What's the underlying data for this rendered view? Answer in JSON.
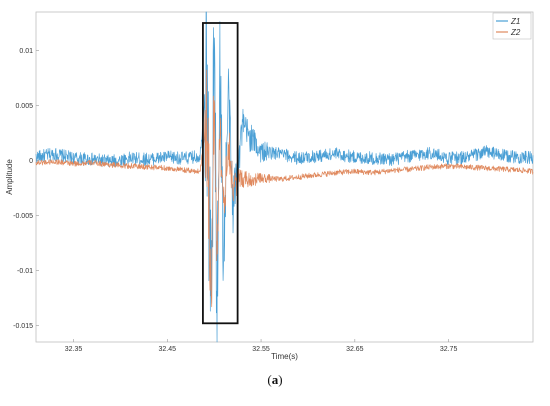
{
  "chart_data": {
    "type": "line",
    "title": "",
    "xlabel": "Time(s)",
    "ylabel": "Amplitude",
    "xlim": [
      32.31,
      32.84
    ],
    "ylim": [
      -0.0165,
      0.0135
    ],
    "x_ticks": [
      32.35,
      32.45,
      32.55,
      32.65,
      32.75
    ],
    "x_tick_labels": [
      "32.35",
      "32.45",
      "32.55",
      "32.65",
      "32.75"
    ],
    "y_ticks": [
      0.01,
      0.005,
      0,
      -0.005,
      -0.01,
      -0.015
    ],
    "y_tick_labels": [
      "0.01",
      "0.005",
      "0",
      "-0.005",
      "-0.01",
      "-0.015"
    ],
    "grid": false,
    "legend_position": "top-right",
    "series": [
      {
        "name": "Z1",
        "color": "#4a9fd5",
        "x": [
          32.31,
          32.33,
          32.35,
          32.37,
          32.39,
          32.41,
          32.43,
          32.45,
          32.47,
          32.485,
          32.492,
          32.497,
          32.5,
          32.503,
          32.506,
          32.51,
          32.515,
          32.52,
          32.53,
          32.54,
          32.55,
          32.57,
          32.59,
          32.61,
          32.63,
          32.65,
          32.67,
          32.69,
          32.71,
          32.73,
          32.75,
          32.77,
          32.79,
          32.81,
          32.83,
          32.84
        ],
        "values": [
          0.0003,
          0.0006,
          0.0002,
          0.0001,
          -0.0001,
          0.0002,
          0.0001,
          0.0003,
          0.0002,
          0.0004,
          0.008,
          -0.014,
          0.0115,
          -0.013,
          0.009,
          -0.009,
          0.006,
          -0.004,
          0.003,
          0.002,
          0.0008,
          0.0006,
          0.0002,
          0.0004,
          0.0006,
          0.0003,
          0.0002,
          0.0001,
          0.0004,
          0.0007,
          0.0002,
          0.0003,
          0.0008,
          0.0004,
          0.0003,
          0.0002
        ]
      },
      {
        "name": "Z2",
        "color": "#e08a5f",
        "x": [
          32.31,
          32.33,
          32.35,
          32.37,
          32.39,
          32.41,
          32.43,
          32.45,
          32.47,
          32.485,
          32.492,
          32.497,
          32.5,
          32.503,
          32.506,
          32.51,
          32.515,
          32.52,
          32.53,
          32.54,
          32.55,
          32.57,
          32.59,
          32.61,
          32.63,
          32.65,
          32.67,
          32.69,
          32.71,
          32.73,
          32.75,
          32.77,
          32.79,
          32.81,
          32.83,
          32.84
        ],
        "values": [
          -0.0002,
          -0.0001,
          -0.0003,
          -0.0002,
          -0.0004,
          -0.0005,
          -0.0006,
          -0.0007,
          -0.0009,
          -0.001,
          0.004,
          -0.012,
          0.006,
          -0.009,
          0.004,
          -0.005,
          0.002,
          -0.0025,
          -0.0015,
          -0.0018,
          -0.0016,
          -0.0017,
          -0.0015,
          -0.0013,
          -0.0011,
          -0.001,
          -0.0011,
          -0.0009,
          -0.0008,
          -0.0006,
          -0.0005,
          -0.0006,
          -0.0007,
          -0.0008,
          -0.0009,
          -0.001
        ]
      }
    ],
    "annotations": [
      {
        "type": "rectangle",
        "x_range": [
          32.488,
          32.525
        ],
        "y_range": [
          -0.0148,
          0.0125
        ]
      }
    ]
  },
  "caption": {
    "open": "(",
    "letter": "a",
    "close": ")"
  }
}
